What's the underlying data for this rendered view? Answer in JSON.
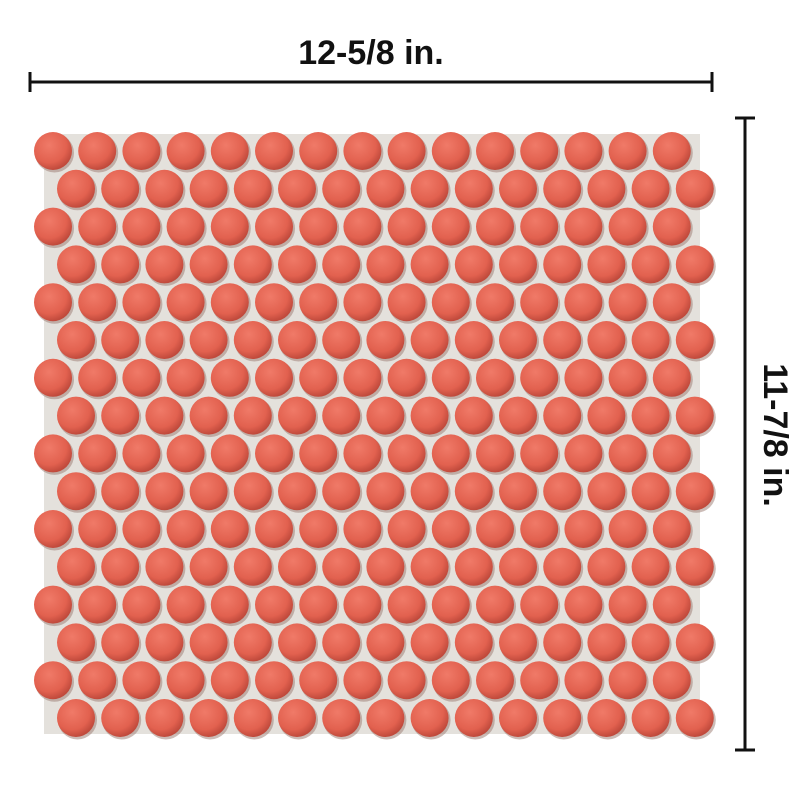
{
  "width_label": "12-5/8 in.",
  "height_label": "11-7/8 in."
}
